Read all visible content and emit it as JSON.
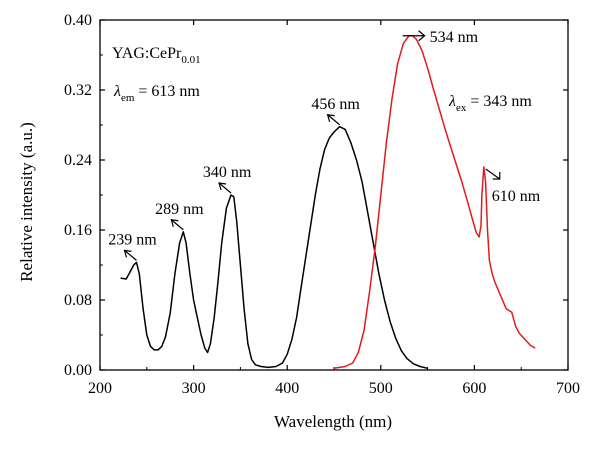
{
  "chart_data": {
    "type": "line",
    "title": "",
    "xlabel": "Wavelength (nm)",
    "ylabel": "Relative intensity (a.u.)",
    "xlim": [
      200,
      700
    ],
    "ylim": [
      0.0,
      0.4
    ],
    "x_ticks": [
      "200",
      "300",
      "400",
      "500",
      "600",
      "700"
    ],
    "y_ticks": [
      "0.00",
      "0.08",
      "0.16",
      "0.24",
      "0.32",
      "0.40"
    ],
    "x_tick_values": [
      200,
      300,
      400,
      500,
      600,
      700
    ],
    "y_tick_values": [
      0.0,
      0.08,
      0.16,
      0.24,
      0.32,
      0.4
    ],
    "grid": false,
    "colors": {
      "excitation": "#000000",
      "emission": "#e31a1c"
    },
    "series": [
      {
        "color": "#000000",
        "points": [
          [
            222,
            0.105
          ],
          [
            228,
            0.104
          ],
          [
            232,
            0.112
          ],
          [
            236,
            0.12
          ],
          [
            239,
            0.123
          ],
          [
            242,
            0.11
          ],
          [
            246,
            0.07
          ],
          [
            250,
            0.04
          ],
          [
            254,
            0.027
          ],
          [
            258,
            0.023
          ],
          [
            262,
            0.023
          ],
          [
            266,
            0.027
          ],
          [
            270,
            0.038
          ],
          [
            275,
            0.065
          ],
          [
            280,
            0.11
          ],
          [
            285,
            0.145
          ],
          [
            289,
            0.158
          ],
          [
            292,
            0.145
          ],
          [
            296,
            0.11
          ],
          [
            300,
            0.08
          ],
          [
            304,
            0.06
          ],
          [
            308,
            0.04
          ],
          [
            312,
            0.025
          ],
          [
            315,
            0.02
          ],
          [
            318,
            0.03
          ],
          [
            322,
            0.06
          ],
          [
            326,
            0.1
          ],
          [
            330,
            0.145
          ],
          [
            335,
            0.185
          ],
          [
            340,
            0.2
          ],
          [
            343,
            0.198
          ],
          [
            346,
            0.17
          ],
          [
            350,
            0.12
          ],
          [
            354,
            0.07
          ],
          [
            358,
            0.03
          ],
          [
            362,
            0.012
          ],
          [
            366,
            0.006
          ],
          [
            372,
            0.004
          ],
          [
            380,
            0.003
          ],
          [
            388,
            0.004
          ],
          [
            395,
            0.008
          ],
          [
            400,
            0.018
          ],
          [
            405,
            0.035
          ],
          [
            410,
            0.06
          ],
          [
            415,
            0.095
          ],
          [
            420,
            0.13
          ],
          [
            425,
            0.165
          ],
          [
            430,
            0.2
          ],
          [
            435,
            0.23
          ],
          [
            440,
            0.252
          ],
          [
            445,
            0.265
          ],
          [
            450,
            0.272
          ],
          [
            456,
            0.278
          ],
          [
            462,
            0.275
          ],
          [
            468,
            0.26
          ],
          [
            474,
            0.24
          ],
          [
            480,
            0.215
          ],
          [
            486,
            0.18
          ],
          [
            492,
            0.145
          ],
          [
            498,
            0.11
          ],
          [
            504,
            0.08
          ],
          [
            510,
            0.055
          ],
          [
            516,
            0.036
          ],
          [
            522,
            0.022
          ],
          [
            528,
            0.013
          ],
          [
            535,
            0.007
          ],
          [
            542,
            0.004
          ],
          [
            550,
            0.002
          ]
        ]
      },
      {
        "color": "#e31a1c",
        "points": [
          [
            450,
            0.002
          ],
          [
            462,
            0.004
          ],
          [
            470,
            0.008
          ],
          [
            476,
            0.02
          ],
          [
            482,
            0.045
          ],
          [
            488,
            0.09
          ],
          [
            494,
            0.14
          ],
          [
            500,
            0.2
          ],
          [
            506,
            0.26
          ],
          [
            512,
            0.31
          ],
          [
            518,
            0.35
          ],
          [
            524,
            0.373
          ],
          [
            530,
            0.382
          ],
          [
            534,
            0.382
          ],
          [
            538,
            0.378
          ],
          [
            544,
            0.365
          ],
          [
            550,
            0.345
          ],
          [
            556,
            0.322
          ],
          [
            562,
            0.3
          ],
          [
            568,
            0.278
          ],
          [
            574,
            0.257
          ],
          [
            580,
            0.237
          ],
          [
            586,
            0.217
          ],
          [
            592,
            0.195
          ],
          [
            598,
            0.172
          ],
          [
            602,
            0.157
          ],
          [
            605,
            0.152
          ],
          [
            607,
            0.165
          ],
          [
            608,
            0.2
          ],
          [
            610,
            0.232
          ],
          [
            612,
            0.215
          ],
          [
            614,
            0.16
          ],
          [
            616,
            0.125
          ],
          [
            619,
            0.11
          ],
          [
            622,
            0.1
          ],
          [
            626,
            0.09
          ],
          [
            630,
            0.08
          ],
          [
            634,
            0.07
          ],
          [
            637,
            0.068
          ],
          [
            640,
            0.066
          ],
          [
            644,
            0.05
          ],
          [
            648,
            0.042
          ],
          [
            654,
            0.035
          ],
          [
            660,
            0.028
          ],
          [
            665,
            0.025
          ]
        ]
      }
    ],
    "annotations": {
      "sample_label": {
        "main": "YAG:CePr",
        "sub": "0.01"
      },
      "lambda_em": {
        "sym": "λ",
        "sub": "em",
        "rest": " = 613 nm"
      },
      "lambda_ex": {
        "sym": "λ",
        "sub": "ex",
        "rest": " = 343 nm"
      },
      "peaks": [
        {
          "label": "239 nm",
          "x": 239,
          "y": 0.123,
          "side": "left"
        },
        {
          "label": "289 nm",
          "x": 289,
          "y": 0.158,
          "side": "left"
        },
        {
          "label": "340 nm",
          "x": 340,
          "y": 0.2,
          "side": "left"
        },
        {
          "label": "456 nm",
          "x": 456,
          "y": 0.278,
          "side": "left"
        },
        {
          "label": "534 nm",
          "x": 534,
          "y": 0.382,
          "side": "right"
        },
        {
          "label": "610 nm",
          "x": 610,
          "y": 0.232,
          "side": "right"
        }
      ]
    }
  }
}
